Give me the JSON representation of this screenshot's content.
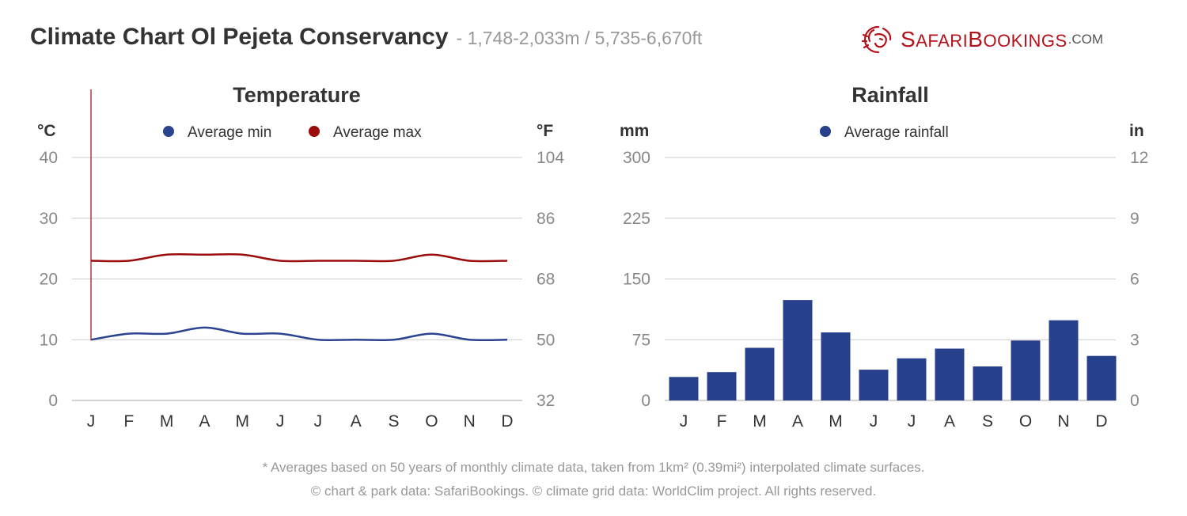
{
  "header": {
    "title": "Climate Chart Ol Pejeta Conservancy",
    "subtitle": "- 1,748-2,033m / 5,735-6,670ft"
  },
  "brand": {
    "name_big1": "S",
    "name_small1": "AFARI",
    "name_big2": "B",
    "name_small2": "OOKINGS",
    "domain": ".COM",
    "logo_icon": "lion-head-icon",
    "color": "#b5121b"
  },
  "chart_data": [
    {
      "type": "line",
      "title": "Temperature",
      "categories": [
        "J",
        "F",
        "M",
        "A",
        "M",
        "J",
        "J",
        "A",
        "S",
        "O",
        "N",
        "D"
      ],
      "left_axis_unit": "°C",
      "right_axis_unit": "°F",
      "ylim": [
        0,
        40
      ],
      "yticks_left": [
        "0",
        "10",
        "20",
        "30",
        "40"
      ],
      "yticks_right": [
        "32",
        "50",
        "68",
        "86",
        "104"
      ],
      "legend_position": "top-center",
      "series": [
        {
          "name": "Average min",
          "color": "#2a4490",
          "values": [
            10,
            11,
            11,
            12,
            11,
            11,
            10,
            10,
            10,
            11,
            10,
            10
          ]
        },
        {
          "name": "Average max",
          "color": "#9b0d0d",
          "values": [
            23,
            23,
            24,
            24,
            24,
            23,
            23,
            23,
            23,
            24,
            23,
            23
          ]
        }
      ],
      "cursor_color": "#9b0d0d"
    },
    {
      "type": "bar",
      "title": "Rainfall",
      "categories": [
        "J",
        "F",
        "M",
        "A",
        "M",
        "J",
        "J",
        "A",
        "S",
        "O",
        "N",
        "D"
      ],
      "left_axis_unit": "mm",
      "right_axis_unit": "in",
      "ylim": [
        0,
        300
      ],
      "yticks_left": [
        "0",
        "75",
        "150",
        "225",
        "300"
      ],
      "yticks_right": [
        "0",
        "3",
        "6",
        "9",
        "12"
      ],
      "legend_position": "top-center",
      "series": [
        {
          "name": "Average rainfall",
          "color": "#27408b",
          "values": [
            29,
            35,
            65,
            124,
            84,
            38,
            52,
            64,
            42,
            74,
            99,
            55
          ]
        }
      ]
    }
  ],
  "footer": {
    "line1": "* Averages based on 50 years of monthly climate data, taken from 1km² (0.39mi²) interpolated climate surfaces.",
    "line2": "© chart & park data: SafariBookings. © climate grid data: WorldClim project. All rights reserved."
  },
  "colors": {
    "grid": "#cccccc",
    "axis_tick_text": "#888888",
    "axis_label_text": "#333333",
    "text_dark": "#333333"
  }
}
